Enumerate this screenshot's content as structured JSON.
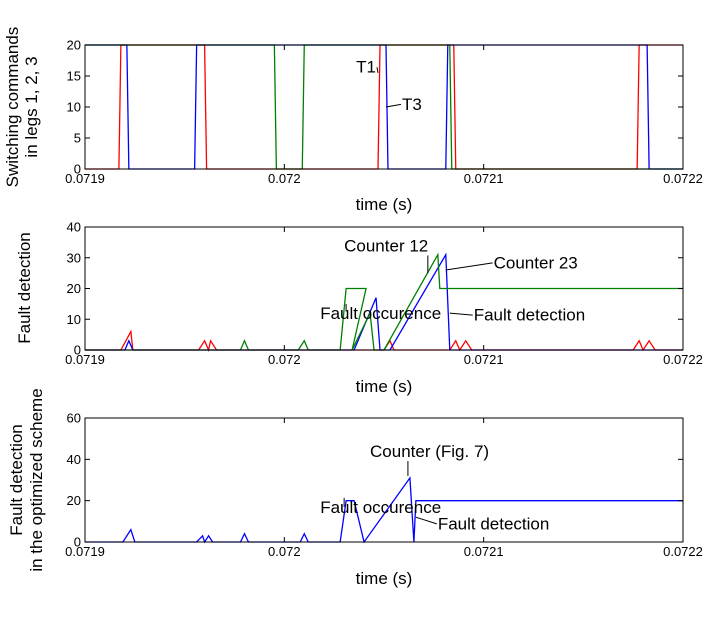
{
  "chart_data": [
    {
      "type": "line",
      "id": "top",
      "title": "",
      "xlabel": "time (s)",
      "ylabel_lines": [
        "Switching commands",
        "in legs 1, 2, 3"
      ],
      "xlim": [
        0.0719,
        0.0722
      ],
      "ylim": [
        0,
        20
      ],
      "xticks": [
        0.0719,
        0.072,
        0.0721,
        0.0722
      ],
      "xtick_labels": [
        "0.0719",
        "0.072",
        "0.0721",
        "0.0722"
      ],
      "yticks": [
        0,
        5,
        10,
        15,
        20
      ],
      "ytick_labels": [
        "0",
        "5",
        "10",
        "15",
        "20"
      ],
      "series": [
        {
          "color": "#ff0000",
          "points": [
            [
              0.0719,
              0
            ],
            [
              0.071917,
              0
            ],
            [
              0.071918,
              20
            ],
            [
              0.07196,
              20
            ],
            [
              0.071961,
              0
            ],
            [
              0.072047,
              0
            ],
            [
              0.072048,
              20
            ],
            [
              0.072085,
              20
            ],
            [
              0.072086,
              0
            ],
            [
              0.072177,
              0
            ],
            [
              0.072178,
              20
            ],
            [
              0.0722,
              20
            ]
          ]
        },
        {
          "color": "#0000ff",
          "points": [
            [
              0.0719,
              20
            ],
            [
              0.071921,
              20
            ],
            [
              0.071922,
              0
            ],
            [
              0.071955,
              0
            ],
            [
              0.071956,
              20
            ],
            [
              0.072051,
              20
            ],
            [
              0.072052,
              0
            ],
            [
              0.072081,
              0
            ],
            [
              0.072082,
              20
            ],
            [
              0.072182,
              20
            ],
            [
              0.072183,
              0
            ],
            [
              0.0722,
              0
            ]
          ]
        },
        {
          "color": "#008000",
          "points": [
            [
              0.0719,
              20
            ],
            [
              0.071995,
              20
            ],
            [
              0.071996,
              0
            ],
            [
              0.072009,
              0
            ],
            [
              0.07201,
              20
            ],
            [
              0.072083,
              20
            ],
            [
              0.072084,
              0
            ],
            [
              0.0722,
              0
            ]
          ]
        }
      ],
      "annotations": [
        {
          "text": "T1",
          "x": 0.072036,
          "y": 16.5,
          "ax": 0.072047,
          "ay": 15.5
        },
        {
          "text": "T3",
          "x": 0.072059,
          "y": 10.5,
          "ax": 0.072051,
          "ay": 10.0
        }
      ]
    },
    {
      "type": "line",
      "id": "middle",
      "title": "",
      "xlabel": "time (s)",
      "ylabel_lines": [
        "Fault detection"
      ],
      "xlim": [
        0.0719,
        0.0722
      ],
      "ylim": [
        0,
        40
      ],
      "xticks": [
        0.0719,
        0.072,
        0.0721,
        0.0722
      ],
      "xtick_labels": [
        "0.0719",
        "0.072",
        "0.0721",
        "0.0722"
      ],
      "yticks": [
        0,
        10,
        20,
        30,
        40
      ],
      "ytick_labels": [
        "0",
        "10",
        "20",
        "30",
        "40"
      ],
      "series": [
        {
          "color": "#ff0000",
          "points": [
            [
              0.0719,
              0
            ],
            [
              0.071918,
              0
            ],
            [
              0.071923,
              6
            ],
            [
              0.071924,
              0
            ],
            [
              0.071957,
              0
            ],
            [
              0.07196,
              3
            ],
            [
              0.071962,
              0
            ],
            [
              0.071963,
              3
            ],
            [
              0.071966,
              0
            ],
            [
              0.07205,
              0
            ],
            [
              0.072053,
              3
            ],
            [
              0.072055,
              0
            ],
            [
              0.072083,
              0
            ],
            [
              0.072086,
              3
            ],
            [
              0.072088,
              0
            ],
            [
              0.072091,
              3
            ],
            [
              0.072094,
              0
            ],
            [
              0.072175,
              0
            ],
            [
              0.072178,
              3
            ],
            [
              0.07218,
              0
            ],
            [
              0.072183,
              3
            ],
            [
              0.072186,
              0
            ],
            [
              0.0722,
              0
            ]
          ]
        },
        {
          "color": "#0000ff",
          "points": [
            [
              0.0719,
              0
            ],
            [
              0.07192,
              0
            ],
            [
              0.071922,
              3
            ],
            [
              0.071924,
              0
            ],
            [
              0.072035,
              0
            ],
            [
              0.072046,
              17
            ],
            [
              0.072048,
              0
            ],
            [
              0.072053,
              0
            ],
            [
              0.072081,
              31
            ],
            [
              0.072083,
              0
            ],
            [
              0.0722,
              0
            ]
          ]
        },
        {
          "color": "#008000",
          "points": [
            [
              0.0719,
              0
            ],
            [
              0.071978,
              0
            ],
            [
              0.07198,
              3
            ],
            [
              0.071982,
              0
            ],
            [
              0.072007,
              0
            ],
            [
              0.07201,
              3
            ],
            [
              0.072012,
              0
            ],
            [
              0.072028,
              0
            ],
            [
              0.072031,
              20
            ],
            [
              0.072041,
              20
            ],
            [
              0.072034,
              0
            ],
            [
              0.072043,
              12
            ],
            [
              0.072045,
              0
            ],
            [
              0.07205,
              0
            ],
            [
              0.072077,
              31
            ],
            [
              0.072078,
              20
            ],
            [
              0.0722,
              20
            ]
          ]
        }
      ],
      "annotations": [
        {
          "text": "Counter 12",
          "x": 0.07203,
          "y": 34,
          "ax": 0.072072,
          "ay": 25
        },
        {
          "text": "Counter 23",
          "x": 0.072105,
          "y": 28.5,
          "ax": 0.072081,
          "ay": 26
        },
        {
          "text": "Fault occurence",
          "x": 0.072018,
          "y": 12,
          "ax": 0.072031,
          "ay": 12.5
        },
        {
          "text": "Fault detection",
          "x": 0.072095,
          "y": 11.5,
          "ax": 0.072083,
          "ay": 12
        }
      ]
    },
    {
      "type": "line",
      "id": "bottom",
      "title": "",
      "xlabel": "time (s)",
      "ylabel_lines": [
        "Fault detection",
        "in the optimized scheme"
      ],
      "xlim": [
        0.0719,
        0.0722
      ],
      "ylim": [
        0,
        60
      ],
      "xticks": [
        0.0719,
        0.072,
        0.0721,
        0.0722
      ],
      "xtick_labels": [
        "0.0719",
        "0.072",
        "0.0721",
        "0.0722"
      ],
      "yticks": [
        0,
        20,
        40,
        60
      ],
      "ytick_labels": [
        "0",
        "20",
        "40",
        "60"
      ],
      "series": [
        {
          "color": "#0000ff",
          "points": [
            [
              0.0719,
              0
            ],
            [
              0.071919,
              0
            ],
            [
              0.071923,
              6
            ],
            [
              0.071925,
              0
            ],
            [
              0.071956,
              0
            ],
            [
              0.071959,
              3
            ],
            [
              0.07196,
              0
            ],
            [
              0.071962,
              3
            ],
            [
              0.071964,
              0
            ],
            [
              0.071978,
              0
            ],
            [
              0.07198,
              4
            ],
            [
              0.071982,
              0
            ],
            [
              0.072008,
              0
            ],
            [
              0.07201,
              4
            ],
            [
              0.072012,
              0
            ],
            [
              0.072028,
              0
            ],
            [
              0.072031,
              20
            ],
            [
              0.072035,
              20
            ],
            [
              0.07204,
              0
            ],
            [
              0.072063,
              31
            ],
            [
              0.072065,
              0
            ],
            [
              0.072066,
              20
            ],
            [
              0.0722,
              20
            ]
          ]
        }
      ],
      "annotations": [
        {
          "text": "Counter  (Fig. 7)",
          "x": 0.072043,
          "y": 44,
          "ax": 0.072062,
          "ay": 32
        },
        {
          "text": "Fault occurence",
          "x": 0.072018,
          "y": 17,
          "ax": 0.07203,
          "ay": 17
        },
        {
          "text": "Fault detection",
          "x": 0.072077,
          "y": 9,
          "ax": 0.072066,
          "ay": 12
        }
      ]
    }
  ]
}
